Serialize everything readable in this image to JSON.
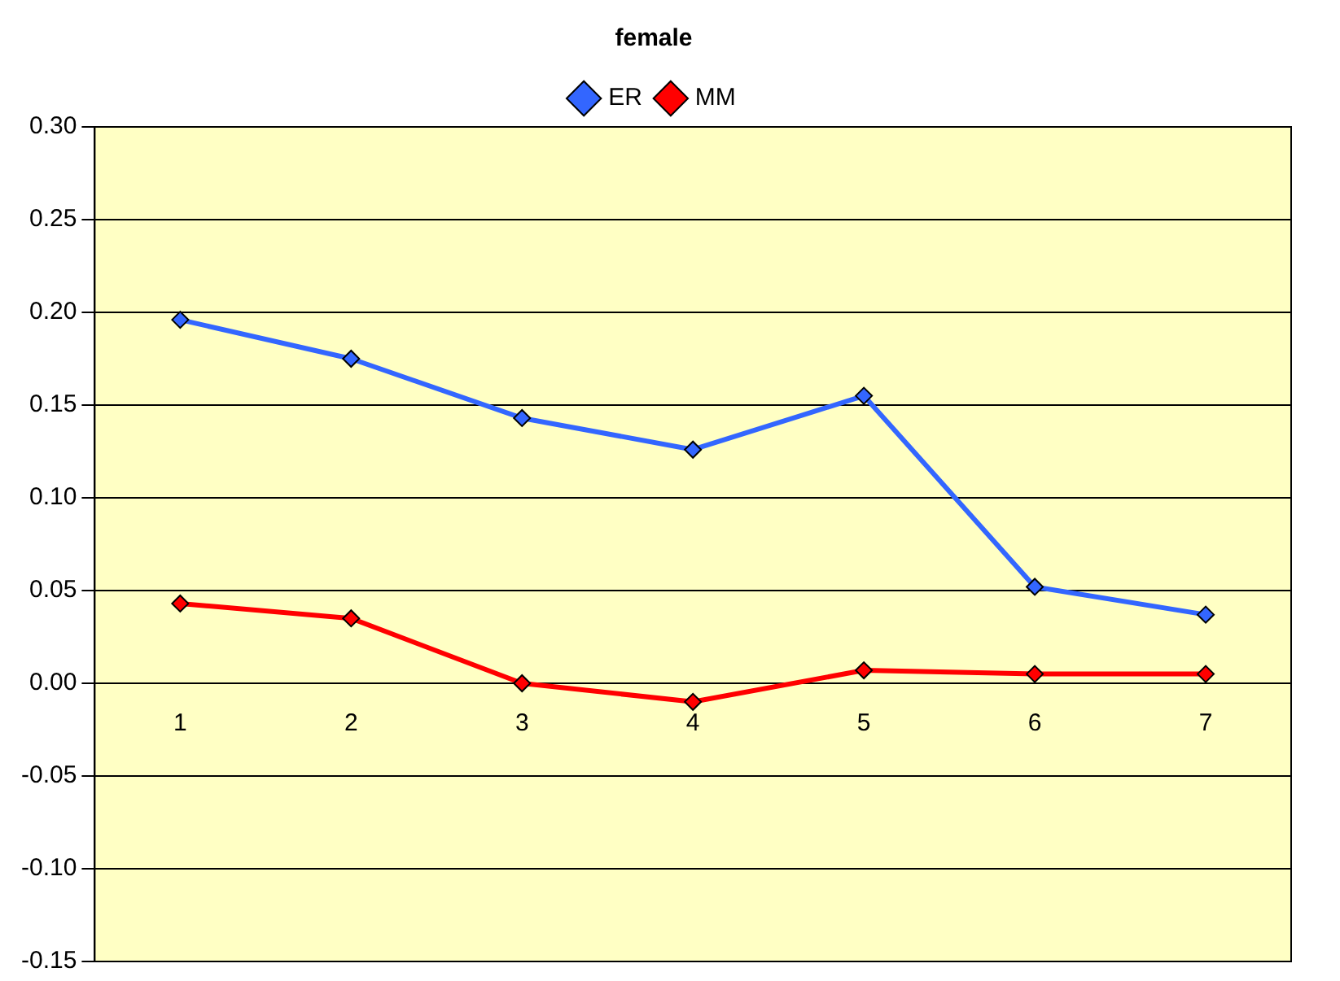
{
  "chart_data": {
    "type": "line",
    "title": "female",
    "categories": [
      "1",
      "2",
      "3",
      "4",
      "5",
      "6",
      "7"
    ],
    "series": [
      {
        "name": "ER",
        "color": "#3366ff",
        "values": [
          0.196,
          0.175,
          0.143,
          0.126,
          0.155,
          0.052,
          0.037
        ]
      },
      {
        "name": "MM",
        "color": "#ff0000",
        "values": [
          0.043,
          0.035,
          0.0,
          -0.01,
          0.007,
          0.005,
          0.005
        ]
      }
    ],
    "ylim": [
      -0.15,
      0.3
    ],
    "yticks": [
      {
        "value": -0.15,
        "label": "-0.15"
      },
      {
        "value": -0.1,
        "label": "-0.10"
      },
      {
        "value": -0.05,
        "label": "-0.05"
      },
      {
        "value": 0,
        "label": "0.00"
      },
      {
        "value": 0.05,
        "label": "0.05"
      },
      {
        "value": 0.1,
        "label": "0.10"
      },
      {
        "value": 0.15,
        "label": "0.15"
      },
      {
        "value": 0.2,
        "label": "0.20"
      },
      {
        "value": 0.25,
        "label": "0.25"
      },
      {
        "value": 0.3,
        "label": "0.30"
      }
    ],
    "grid": "y",
    "legend": "top",
    "marker": "diamond",
    "line_style": "solid"
  }
}
